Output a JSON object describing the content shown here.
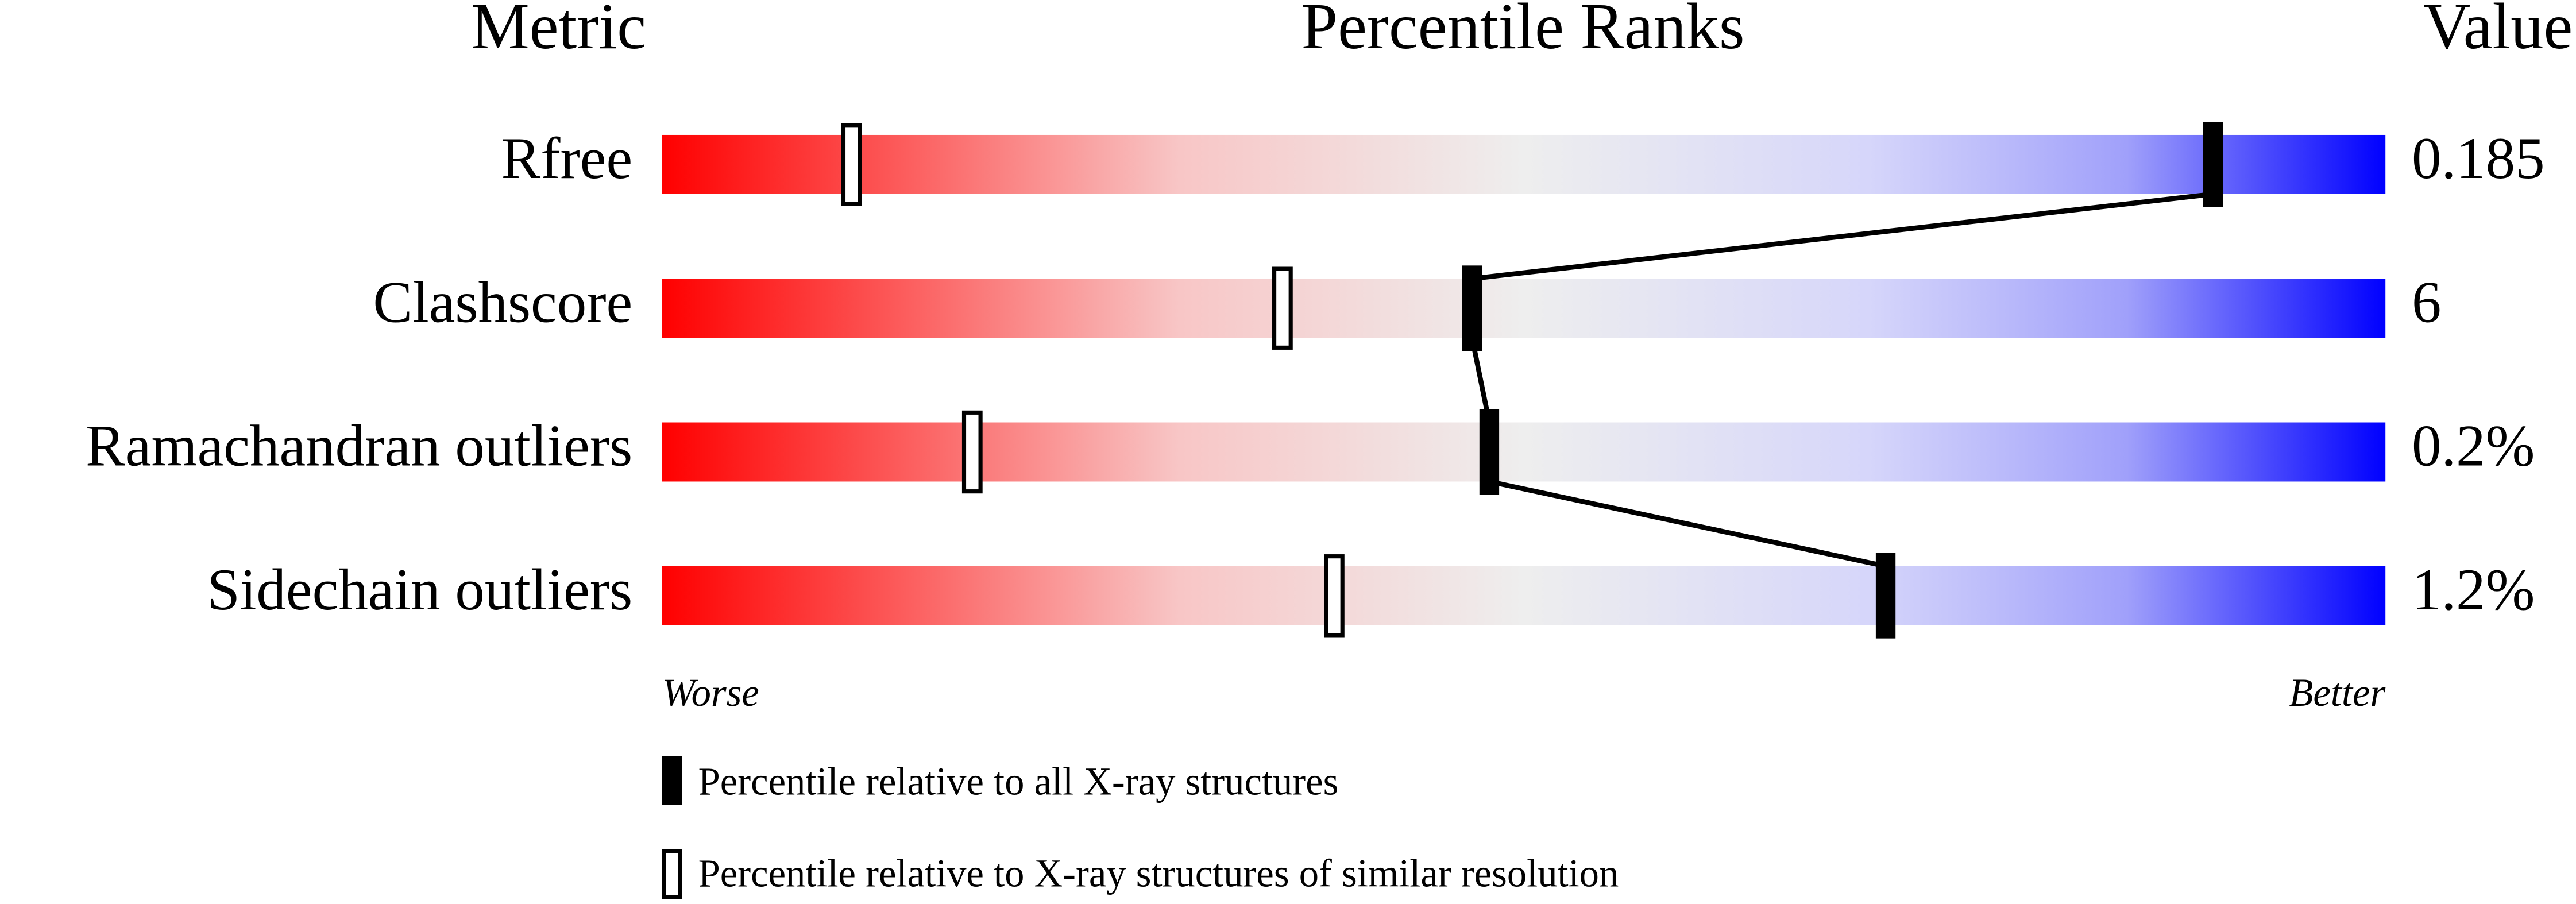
{
  "header": {
    "metric": "Metric",
    "ranks": "Percentile Ranks",
    "value": "Value"
  },
  "percentile_range": [
    0,
    100
  ],
  "metrics": [
    {
      "name": "Rfree",
      "value": "0.185",
      "percentile_all": 90,
      "percentile_similar": 11
    },
    {
      "name": "Clashscore",
      "value": "6",
      "percentile_all": 47,
      "percentile_similar": 36
    },
    {
      "name": "Ramachandran outliers",
      "value": "0.2%",
      "percentile_all": 48,
      "percentile_similar": 18
    },
    {
      "name": "Sidechain outliers",
      "value": "1.2%",
      "percentile_all": 71,
      "percentile_similar": 39
    }
  ],
  "axis": {
    "left": "Worse",
    "right": "Better"
  },
  "legend": {
    "all": "Percentile relative to all X-ray structures",
    "similar": "Percentile relative to X-ray structures of similar resolution"
  }
}
